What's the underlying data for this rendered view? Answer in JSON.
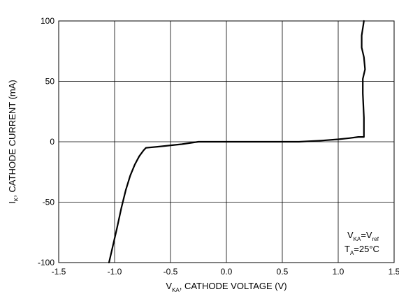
{
  "chart_data": {
    "type": "line",
    "xlabel": {
      "main": "V",
      "sub": "KA",
      "rest": ", CATHODE VOLTAGE  (V)"
    },
    "ylabel": {
      "main": "I",
      "sub": "K",
      "rest": ", CATHODE CURRENT  (mA)"
    },
    "xlim": [
      -1.5,
      1.5
    ],
    "ylim": [
      -100,
      100
    ],
    "x_ticks": [
      "-1.5",
      "-1.0",
      "-0.5",
      "0.0",
      "0.5",
      "1.0",
      "1.5"
    ],
    "y_ticks": [
      "100",
      "50",
      "0",
      "-50",
      "-100"
    ],
    "grid": true,
    "annotation": {
      "line1": {
        "a": "V",
        "a_sub": "KA",
        "eq": "=V",
        "b_sub": "ref"
      },
      "line2": {
        "a": "T",
        "a_sub": "A",
        "rest": "=25°C"
      },
      "placement": "bottom-right"
    },
    "series": [
      {
        "x": [
          -1.05,
          -1.02,
          -0.98,
          -0.94,
          -0.9,
          -0.86,
          -0.82,
          -0.78,
          -0.74,
          -0.72,
          -0.6,
          -0.4,
          -0.25,
          0.0,
          0.3,
          0.65,
          0.85,
          1.0,
          1.1,
          1.18,
          1.2,
          1.22,
          1.23,
          1.23,
          1.22,
          1.22,
          1.24,
          1.23,
          1.21,
          1.21,
          1.23
        ],
        "y": [
          -100,
          -88,
          -72,
          -55,
          -40,
          -28,
          -19,
          -12,
          -7,
          -5,
          -4,
          -2,
          0,
          0,
          0,
          0,
          1,
          2,
          3,
          4,
          4,
          4,
          4,
          20,
          40,
          52,
          60,
          70,
          78,
          88,
          100
        ]
      }
    ]
  }
}
